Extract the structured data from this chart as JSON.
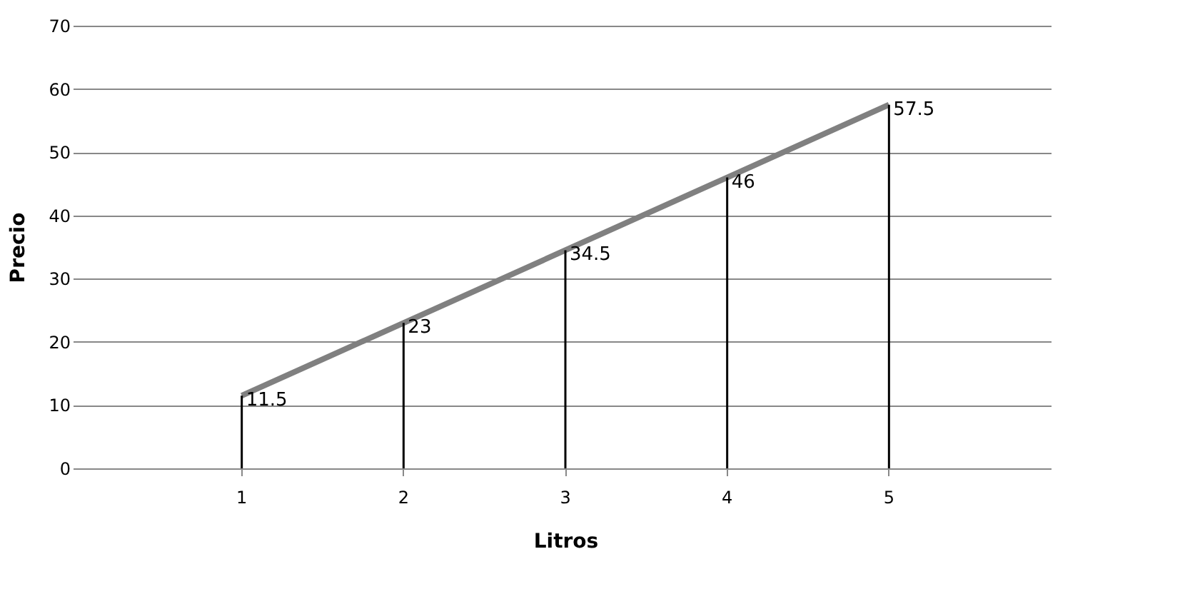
{
  "chart_data": {
    "type": "line",
    "xlabel": "Litros",
    "ylabel": "Precio",
    "categories": [
      "1",
      "2",
      "3",
      "4",
      "5"
    ],
    "series": [
      {
        "color": "#808080",
        "marker": "none",
        "values": [
          11.5,
          23,
          34.5,
          46,
          57.5
        ],
        "value_labels": [
          "11.5",
          "23",
          "34.5",
          "46",
          "57.5"
        ]
      },
      {
        "type": "bar",
        "color": "#000000",
        "values": [
          11.5,
          23,
          34.5,
          46,
          57.5
        ]
      }
    ],
    "ylim": [
      0,
      70
    ],
    "yticks": [
      0,
      10,
      20,
      30,
      40,
      50,
      60,
      70
    ],
    "grid": "y"
  }
}
